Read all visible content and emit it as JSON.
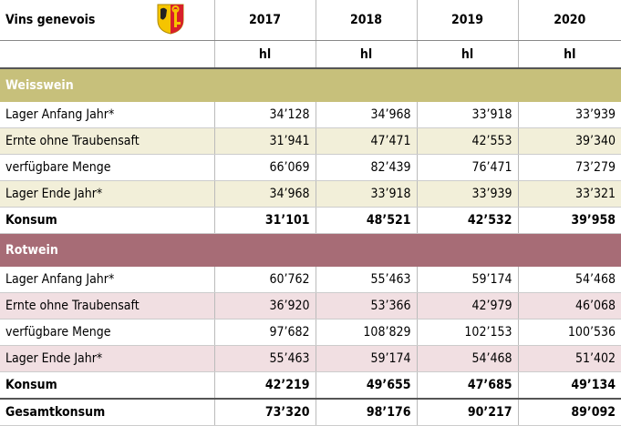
{
  "header": {
    "title": "Vins genevois",
    "years": [
      "2017",
      "2018",
      "2019",
      "2020"
    ],
    "units": [
      "hl",
      "hl",
      "hl",
      "hl"
    ]
  },
  "sections": [
    {
      "name": "Weisswein",
      "rows": [
        {
          "label": "Lager Anfang Jahr*",
          "values": [
            "34’128",
            "34’968",
            "33’918",
            "33’939"
          ]
        },
        {
          "label": "Ernte ohne Traubensaft",
          "values": [
            "31’941",
            "47’471",
            "42’553",
            "39’340"
          ]
        },
        {
          "label": "verfügbare Menge",
          "values": [
            "66’069",
            "82’439",
            "76’471",
            "73’279"
          ]
        },
        {
          "label": "Lager Ende Jahr*",
          "values": [
            "34’968",
            "33’918",
            "33’939",
            "33’321"
          ]
        },
        {
          "label": "Konsum",
          "values": [
            "31’101",
            "48’521",
            "42’532",
            "39’958"
          ]
        }
      ]
    },
    {
      "name": "Rotwein",
      "rows": [
        {
          "label": "Lager Anfang Jahr*",
          "values": [
            "60’762",
            "55’463",
            "59’174",
            "54’468"
          ]
        },
        {
          "label": "Ernte ohne Traubensaft",
          "values": [
            "36’920",
            "53’366",
            "42’979",
            "46’068"
          ]
        },
        {
          "label": "verfügbare Menge",
          "values": [
            "97’682",
            "108’829",
            "102’153",
            "100’536"
          ]
        },
        {
          "label": "Lager Ende Jahr*",
          "values": [
            "55’463",
            "59’174",
            "54’468",
            "51’402"
          ]
        },
        {
          "label": "Konsum",
          "values": [
            "42’219",
            "49’655",
            "47’685",
            "49’134"
          ]
        }
      ]
    }
  ],
  "total": {
    "label": "Gesamtkonsum",
    "values": [
      "73’320",
      "98’176",
      "90’217",
      "89’092"
    ]
  }
}
